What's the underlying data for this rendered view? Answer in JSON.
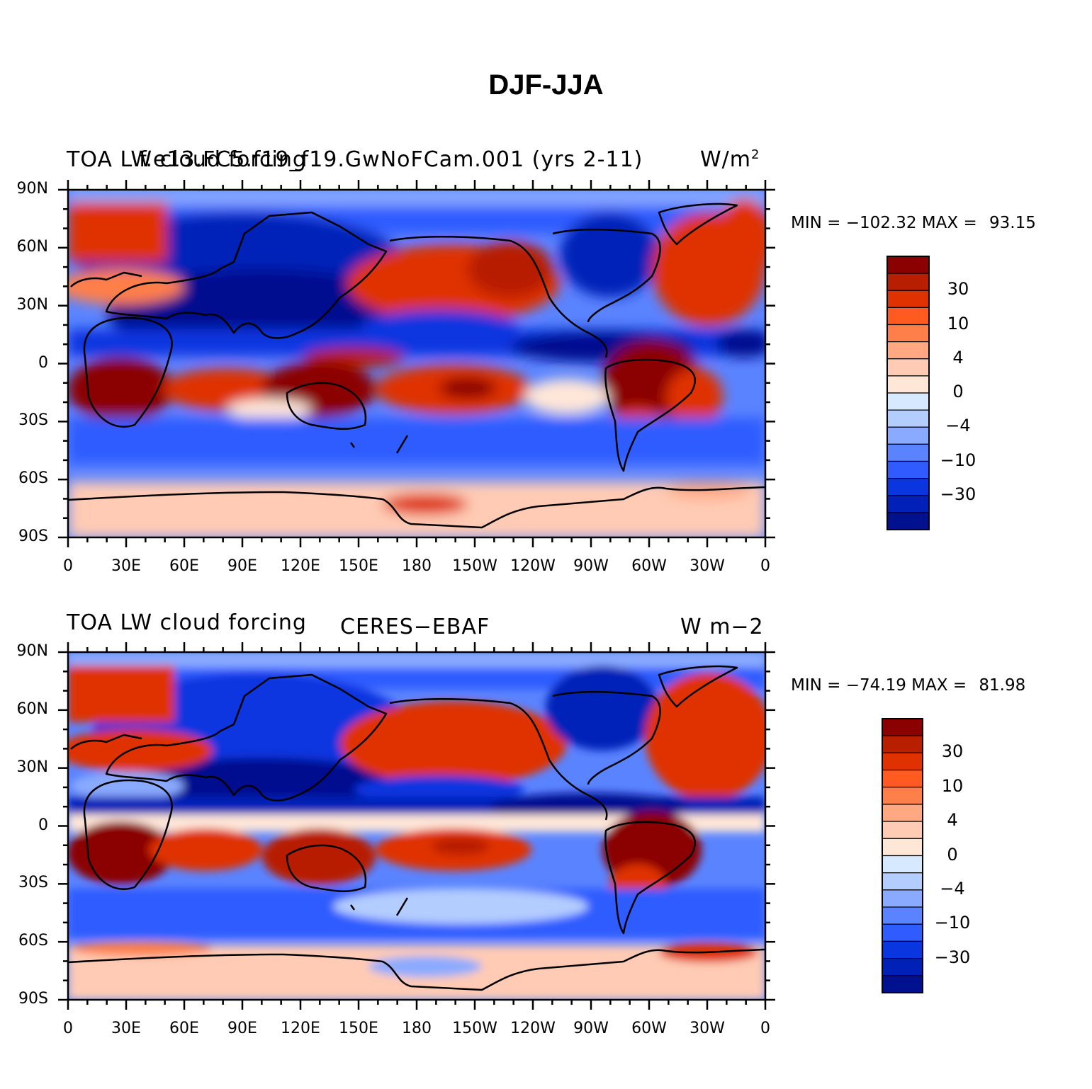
{
  "figure": {
    "title": "DJF-JJA"
  },
  "panels": [
    {
      "left_title": "TOA LW cloud forcing",
      "center_title": "f.e13.FC5.f19_f19.GwNoFCam.001 (yrs 2-11)",
      "right_title": "W/m",
      "right_title_sup": "2",
      "min_label": "MIN =",
      "min_value": "−102.32",
      "max_label": "MAX =",
      "max_value": "93.15"
    },
    {
      "left_title": "TOA LW cloud forcing",
      "center_title": "CERES−EBAF",
      "right_title": "W m−2",
      "right_title_sup": "",
      "min_label": "MIN =",
      "min_value": "−74.19",
      "max_label": "MAX =",
      "max_value": "81.98"
    }
  ],
  "axes": {
    "lat_ticks": [
      "90N",
      "60N",
      "30N",
      "0",
      "30S",
      "60S",
      "90S"
    ],
    "lon_ticks": [
      "0",
      "30E",
      "60E",
      "90E",
      "120E",
      "150E",
      "180",
      "150W",
      "120W",
      "90W",
      "60W",
      "30W",
      "0"
    ]
  },
  "colorbar": {
    "labels": [
      "30",
      "10",
      "4",
      "0",
      "−4",
      "−10",
      "−30"
    ],
    "colors": [
      "#8b0000",
      "#b81e00",
      "#df3200",
      "#ff5a1f",
      "#ff7f4a",
      "#ffa882",
      "#ffcbb4",
      "#ffe7d8",
      "#d6e9ff",
      "#b4cdff",
      "#8aaaff",
      "#5a84ff",
      "#2f5bff",
      "#0a36e0",
      "#0020b8",
      "#00118f"
    ]
  },
  "chart_data": [
    {
      "type": "heatmap",
      "title": "f.e13.FC5.f19_f19.GwNoFCam.001 (yrs 2-11)",
      "variable": "TOA LW cloud forcing",
      "units": "W/m2",
      "season": "DJF-JJA",
      "min": -102.32,
      "max": 93.15,
      "contour_levels": [
        -40,
        -30,
        -20,
        -10,
        -6,
        -4,
        -2,
        0,
        2,
        4,
        6,
        10,
        20,
        30,
        40
      ],
      "xrange": [
        0,
        360
      ],
      "yrange": [
        -90,
        90
      ]
    },
    {
      "type": "heatmap",
      "title": "CERES−EBAF",
      "variable": "TOA LW cloud forcing",
      "units": "W m−2",
      "season": "DJF-JJA",
      "min": -74.19,
      "max": 81.98,
      "contour_levels": [
        -40,
        -30,
        -20,
        -10,
        -6,
        -4,
        -2,
        0,
        2,
        4,
        6,
        10,
        20,
        30,
        40
      ],
      "xrange": [
        0,
        360
      ],
      "yrange": [
        -90,
        90
      ]
    }
  ]
}
